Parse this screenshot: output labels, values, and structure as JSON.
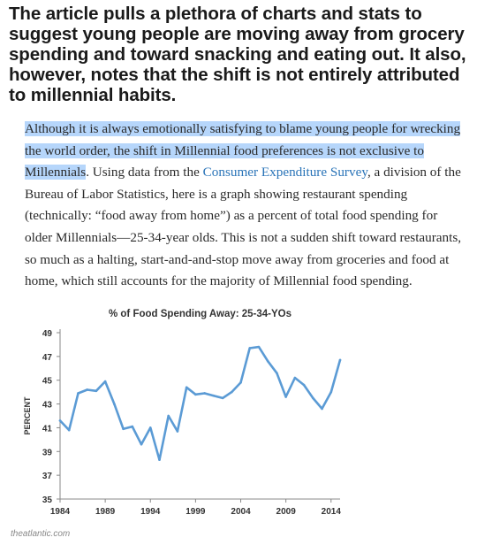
{
  "headline": "The article pulls a plethora of charts and stats to suggest young people are moving away from grocery spending and toward snacking and eating out. It also, however, notes that the shift is not entirely attributed to millennial habits.",
  "quote": {
    "highlighted": "Although it is always emotionally satisfying to blame young people for wrecking the world order, the shift in Millennial food preferences is not exclusive to Millennials",
    "after_highlight": ". Using data from the ",
    "link_text": "Consumer Expenditure Survey",
    "rest": ", a division of the Bureau of Labor Statistics, here is a graph showing restaurant spending (technically: “food away from home”) as a percent of total food spending for older Millennials—25-34-year olds. This is not a sudden shift toward restaurants, so much as a halting, start-and-and-stop move away from groceries and food at home, which still accounts for the majority of Millennial food spending."
  },
  "source": "theatlantic.com",
  "colors": {
    "highlight": "#b6d6fb",
    "link": "#2a74b8",
    "line": "#5b9bd5"
  },
  "chart_data": {
    "type": "line",
    "title": "% of Food Spending Away: 25-34-YOs",
    "ylabel": "PERCENT",
    "xlabel": "",
    "ylim": [
      35,
      49
    ],
    "xlim": [
      1984,
      2015
    ],
    "yticks": [
      35,
      37,
      39,
      41,
      43,
      45,
      47,
      49
    ],
    "xticks": [
      1984,
      1989,
      1994,
      1999,
      2004,
      2009,
      2014
    ],
    "grid": false,
    "series": [
      {
        "x": [
          1984,
          1985,
          1986,
          1987,
          1988,
          1989,
          1990,
          1991,
          1992,
          1993,
          1994,
          1995,
          1996,
          1997,
          1998,
          1999,
          2000,
          2001,
          2002,
          2003,
          2004,
          2005,
          2006,
          2007,
          2008,
          2009,
          2010,
          2011,
          2012,
          2013,
          2014,
          2015
        ],
        "values": [
          41.6,
          40.8,
          43.9,
          44.2,
          44.1,
          44.9,
          43.0,
          40.9,
          41.1,
          39.6,
          41.0,
          38.3,
          42.0,
          40.7,
          44.4,
          43.8,
          43.9,
          43.7,
          43.5,
          44.0,
          44.8,
          47.7,
          47.8,
          46.6,
          45.6,
          43.6,
          45.2,
          44.6,
          43.5,
          42.6,
          44.0,
          46.7
        ]
      }
    ]
  }
}
